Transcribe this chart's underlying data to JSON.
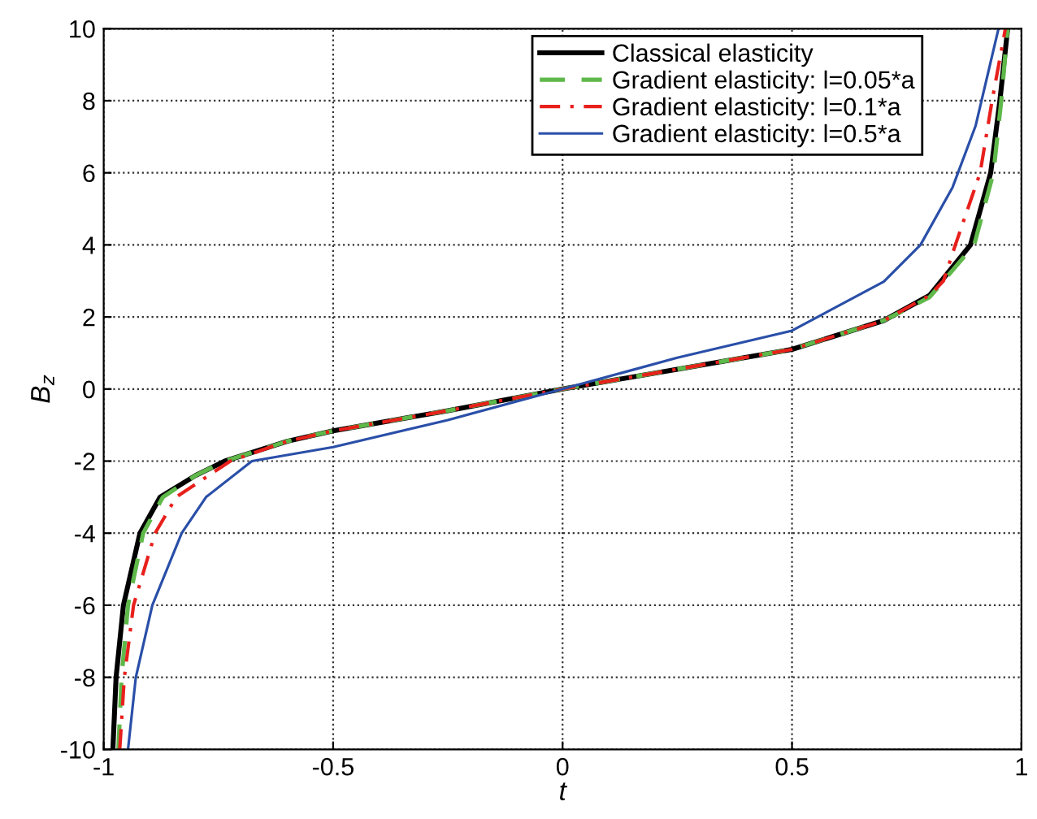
{
  "chart_data": {
    "type": "line",
    "xlabel": "t",
    "ylabel": "B$_{z}$",
    "xlim": [
      -1,
      1
    ],
    "ylim": [
      -10,
      10
    ],
    "xticks": [
      -1,
      -0.5,
      0,
      0.5,
      1
    ],
    "yticks": [
      -10,
      -8,
      -6,
      -4,
      -2,
      0,
      2,
      4,
      6,
      8,
      10
    ],
    "grid": true,
    "legend": "top right",
    "series": [
      {
        "name": "Classical elasticity",
        "color": "#000000",
        "line_style": "solid",
        "x": [
          -0.98,
          -0.973,
          -0.957,
          -0.921,
          -0.877,
          -0.8,
          -0.736,
          -0.6,
          -0.5,
          -0.25,
          0,
          0.25,
          0.5,
          0.7,
          0.8,
          0.889,
          0.933,
          0.953,
          0.97
        ],
        "values": [
          -10,
          -8,
          -6,
          -4,
          -3,
          -2.4,
          -2,
          -1.45,
          -1.16,
          -0.6,
          0,
          0.55,
          1.1,
          1.9,
          2.6,
          4,
          6,
          8,
          10
        ]
      },
      {
        "name": "Gradient elasticity: l=0.05*a",
        "color": "#5fb84a",
        "line_style": "dashed",
        "x": [
          -0.968,
          -0.961,
          -0.947,
          -0.914,
          -0.871,
          -0.8,
          -0.736,
          -0.6,
          -0.5,
          -0.25,
          0,
          0.25,
          0.5,
          0.7,
          0.8,
          0.897,
          0.939,
          0.956,
          0.97
        ],
        "values": [
          -10,
          -8,
          -6,
          -4,
          -3,
          -2.4,
          -2,
          -1.45,
          -1.16,
          -0.6,
          0,
          0.55,
          1.1,
          1.9,
          2.55,
          4,
          6,
          8,
          10
        ]
      },
      {
        "name": "Gradient elasticity: l=0.1*a",
        "color": "#e8201c",
        "line_style": "dashdot",
        "x": [
          -0.965,
          -0.955,
          -0.935,
          -0.888,
          -0.842,
          -0.724,
          -0.6,
          -0.5,
          -0.25,
          0,
          0.25,
          0.5,
          0.7,
          0.8,
          0.83,
          0.856,
          0.91,
          0.936,
          0.965
        ],
        "values": [
          -10,
          -8,
          -6,
          -4,
          -3,
          -2,
          -1.45,
          -1.16,
          -0.6,
          0,
          0.55,
          1.1,
          1.9,
          2.6,
          3,
          4,
          6,
          8,
          10
        ]
      },
      {
        "name": "Gradient elasticity: l=0.5*a",
        "color": "#2a4fa8",
        "line_style": "solid",
        "x": [
          -0.947,
          -0.93,
          -0.894,
          -0.83,
          -0.777,
          -0.677,
          -0.5,
          -0.25,
          0,
          0.25,
          0.5,
          0.7,
          0.78,
          0.85,
          0.9,
          0.95
        ],
        "values": [
          -10,
          -8,
          -6,
          -4,
          -3,
          -2,
          -1.61,
          -0.86,
          0,
          0.87,
          1.62,
          2.98,
          4,
          5.6,
          7.3,
          10
        ]
      }
    ]
  }
}
